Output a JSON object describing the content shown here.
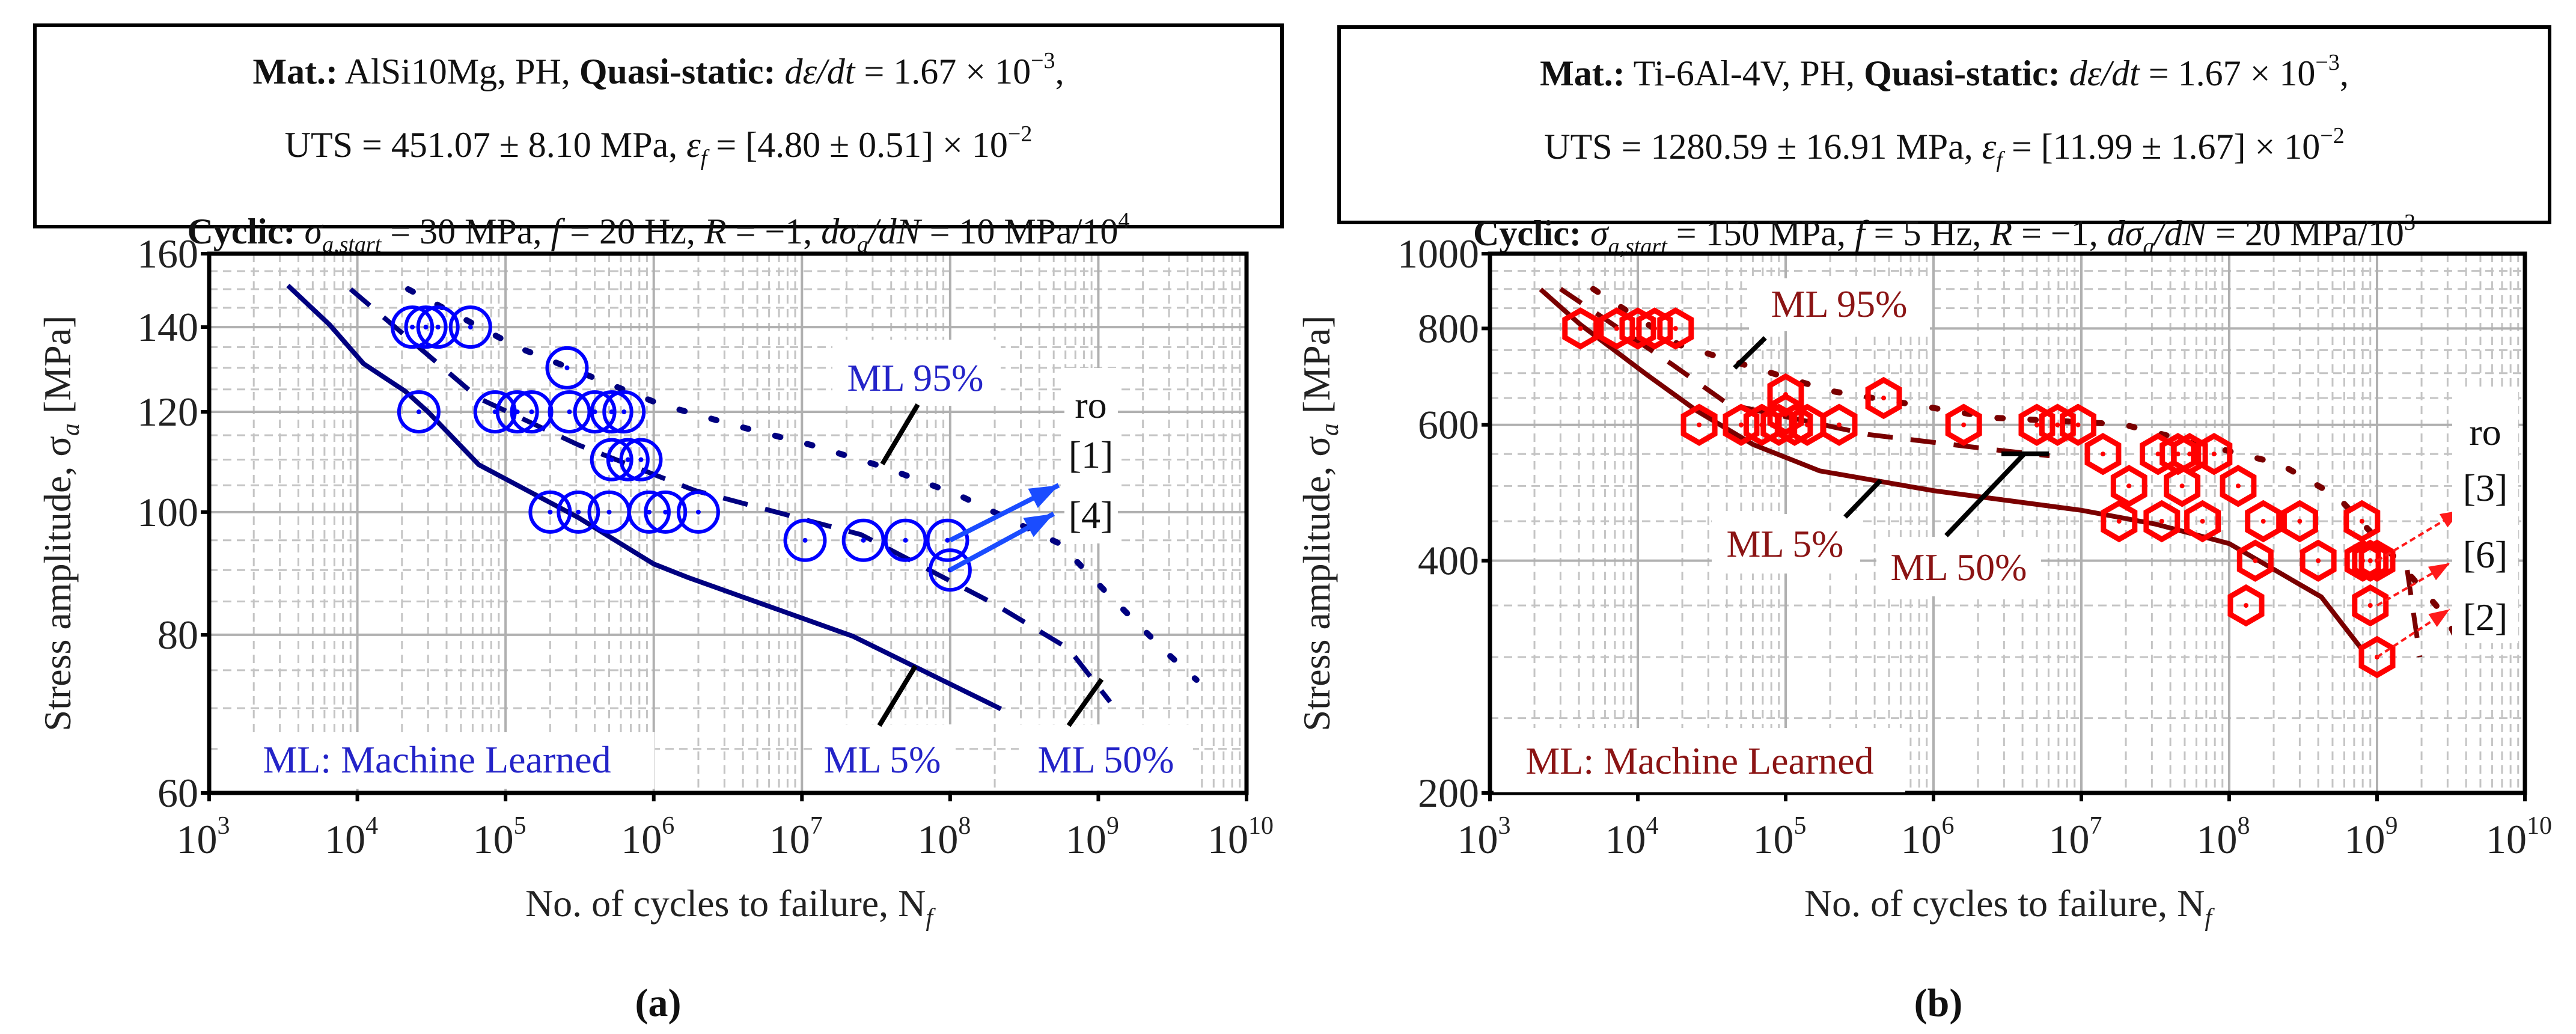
{
  "panels": [
    {
      "label": "(a)",
      "header": [
        [
          {
            "t": "Mat.:",
            "s": "b"
          },
          {
            "t": " AlSi10Mg, PH, ",
            "s": "n"
          },
          {
            "t": "Quasi-static:",
            "s": "b"
          },
          {
            "t": " ",
            "s": "n"
          },
          {
            "t": "dε/dt",
            "s": "i"
          },
          {
            "t": " = 1.67 × 10",
            "s": "n"
          },
          {
            "t": "−3",
            "s": "sup"
          },
          {
            "t": ",",
            "s": "n"
          }
        ],
        [
          {
            "t": "UTS = 451.07 ± 8.10 MPa, ",
            "s": "n"
          },
          {
            "t": "ε",
            "s": "i"
          },
          {
            "t": "f",
            "s": "sub"
          },
          {
            "t": " = [4.80 ± 0.51] × 10",
            "s": "n"
          },
          {
            "t": "−2",
            "s": "sup"
          }
        ],
        [
          {
            "t": "Cyclic:",
            "s": "b"
          },
          {
            "t": " ",
            "s": "n"
          },
          {
            "t": "σ",
            "s": "i"
          },
          {
            "t": "a,start",
            "s": "sub"
          },
          {
            "t": " = 30 MPa, ",
            "s": "n"
          },
          {
            "t": "f",
            "s": "i"
          },
          {
            "t": " = 20 Hz, ",
            "s": "n"
          },
          {
            "t": "R",
            "s": "i"
          },
          {
            "t": " = −1, ",
            "s": "n"
          },
          {
            "t": "dσ",
            "s": "i"
          },
          {
            "t": "a",
            "s": "sub"
          },
          {
            "t": "/dN",
            "s": "i"
          },
          {
            "t": " = 10 MPa/10",
            "s": "n"
          },
          {
            "t": "4",
            "s": "sup"
          }
        ]
      ]
    },
    {
      "label": "(b)",
      "header": [
        [
          {
            "t": "Mat.:",
            "s": "b"
          },
          {
            "t": " Ti-6Al-4V, PH, ",
            "s": "n"
          },
          {
            "t": "Quasi-static:",
            "s": "b"
          },
          {
            "t": " ",
            "s": "n"
          },
          {
            "t": "dε/dt",
            "s": "i"
          },
          {
            "t": " = 1.67 × 10",
            "s": "n"
          },
          {
            "t": "−3",
            "s": "sup"
          },
          {
            "t": ",",
            "s": "n"
          }
        ],
        [
          {
            "t": "UTS = 1280.59 ± 16.91 MPa, ",
            "s": "n"
          },
          {
            "t": "ε",
            "s": "i"
          },
          {
            "t": "f",
            "s": "sub"
          },
          {
            "t": " = [11.99 ± 1.67] × 10",
            "s": "n"
          },
          {
            "t": "−2",
            "s": "sup"
          }
        ],
        [
          {
            "t": "Cyclic:",
            "s": "b"
          },
          {
            "t": " ",
            "s": "n"
          },
          {
            "t": "σ",
            "s": "i"
          },
          {
            "t": "a,start",
            "s": "sub"
          },
          {
            "t": " = 150 MPa, ",
            "s": "n"
          },
          {
            "t": "f",
            "s": "i"
          },
          {
            "t": " = 5 Hz, ",
            "s": "n"
          },
          {
            "t": "R",
            "s": "i"
          },
          {
            "t": " = −1, ",
            "s": "n"
          },
          {
            "t": "dσ",
            "s": "i"
          },
          {
            "t": "a",
            "s": "sub"
          },
          {
            "t": "/dN",
            "s": "i"
          },
          {
            "t": " = 20 MPa/10",
            "s": "n"
          },
          {
            "t": "3",
            "s": "sup"
          }
        ]
      ]
    }
  ],
  "chart_data": [
    {
      "type": "scatter",
      "title": "",
      "xlabel": "No. of cycles to failure, N",
      "xlabel_sub": "f",
      "ylabel": "Stress amplitude, σ",
      "ylabel_sub": "a",
      "ylabel_unit": " [MPa]",
      "xscale": "log",
      "yscale": "log",
      "xlim": [
        1000.0,
        10000000000.0
      ],
      "ylim": [
        60,
        160
      ],
      "xtick_base": "10",
      "xtick_exponents": [
        "3",
        "4",
        "5",
        "6",
        "7",
        "8",
        "9",
        "10"
      ],
      "yticks": [
        60,
        80,
        100,
        120,
        140,
        160
      ],
      "grid": true,
      "colors": {
        "marker": "#0000ff",
        "line": "#000080",
        "label": "#2424c8",
        "arrow": "#1a4cff"
      },
      "marker": "circle",
      "experiments": [
        [
          23500.0,
          140
        ],
        [
          29000.0,
          140
        ],
        [
          35000.0,
          140
        ],
        [
          58000.0,
          140
        ],
        [
          260000.0,
          130
        ],
        [
          26000.0,
          120
        ],
        [
          85000.0,
          120
        ],
        [
          120000.0,
          120
        ],
        [
          150000.0,
          120
        ],
        [
          270000.0,
          120
        ],
        [
          400000.0,
          120
        ],
        [
          520000.0,
          120
        ],
        [
          630000.0,
          120
        ],
        [
          520000.0,
          110
        ],
        [
          670000.0,
          110
        ],
        [
          820000.0,
          110
        ],
        [
          200000.0,
          100
        ],
        [
          310000.0,
          100
        ],
        [
          500000.0,
          100
        ],
        [
          930000.0,
          100
        ],
        [
          1200000.0,
          100
        ],
        [
          2000000.0,
          100
        ],
        [
          10500000.0,
          95
        ],
        [
          26000000.0,
          95
        ],
        [
          50000000.0,
          95
        ],
        [
          96000000.0,
          95
        ],
        [
          100000000.0,
          90
        ]
      ],
      "series": [
        {
          "name": "ML 5%",
          "style": "solid",
          "points": [
            [
              3400.0,
              151
            ],
            [
              6500.0,
              140.6
            ],
            [
              11000.0,
              131
            ],
            [
              21000.0,
              124.6
            ],
            [
              30000.0,
              120
            ],
            [
              66000.0,
              109
            ],
            [
              310000.0,
              99
            ],
            [
              1000000.0,
              91
            ],
            [
              1700000.0,
              88.8
            ],
            [
              22000000.0,
              79.8
            ],
            [
              220000000.0,
              69.9
            ]
          ]
        },
        {
          "name": "ML 50%",
          "style": "dashed",
          "points": [
            [
              9000.0,
              150
            ],
            [
              66000.0,
              123
            ],
            [
              310000.0,
              113
            ],
            [
              1900000.0,
              104
            ],
            [
              25000000.0,
              96
            ],
            [
              196000000.0,
              84.7
            ],
            [
              630000000.0,
              78
            ],
            [
              1200000000.0,
              70.8
            ]
          ]
        },
        {
          "name": "ML 95%",
          "style": "dotted",
          "points": [
            [
              22000.0,
              150
            ],
            [
              120000.0,
              135
            ],
            [
              1100000.0,
              121.7
            ],
            [
              3600000.0,
              117
            ],
            [
              11500000.0,
              113
            ],
            [
              36000000.0,
              108.5
            ],
            [
              117000000.0,
              103
            ],
            [
              550000000.0,
              94.4
            ],
            [
              1200000000.0,
              85.8
            ],
            [
              2900000000.0,
              77.4
            ],
            [
              4600000000.0,
              73.7
            ]
          ]
        }
      ],
      "runout_label": "ro",
      "runouts": [
        {
          "label": "[1]",
          "from": [
            100000000.0,
            95
          ],
          "to": [
            540000000.0,
            105
          ]
        },
        {
          "label": "[4]",
          "from": [
            100000000.0,
            90
          ],
          "to": [
            500000000.0,
            99.7
          ]
        }
      ],
      "note": "ML: Machine Learned"
    },
    {
      "type": "scatter",
      "title": "",
      "xlabel": "No. of cycles to failure, N",
      "xlabel_sub": "f",
      "ylabel": "Stress amplitude, σ",
      "ylabel_sub": "a",
      "ylabel_unit": " [MPa]",
      "xscale": "log",
      "yscale": "log",
      "xlim": [
        1000.0,
        10000000000.0
      ],
      "ylim": [
        200,
        1000
      ],
      "xtick_base": "10",
      "xtick_exponents": [
        "3",
        "4",
        "5",
        "6",
        "7",
        "8",
        "9",
        "10"
      ],
      "yticks": [
        200,
        400,
        600,
        800,
        1000
      ],
      "grid": true,
      "colors": {
        "marker": "#ff0000",
        "line": "#7a0000",
        "label": "#8b1414",
        "arrow": "#ff1a1a"
      },
      "marker": "hexagon",
      "experiments": [
        [
          4100.0,
          800
        ],
        [
          7200.0,
          800
        ],
        [
          10000.0,
          800
        ],
        [
          13000.0,
          800
        ],
        [
          18000.0,
          800
        ],
        [
          100000.0,
          657
        ],
        [
          100000.0,
          619
        ],
        [
          460000.0,
          650
        ],
        [
          26000.0,
          600
        ],
        [
          50000.0,
          600
        ],
        [
          69000.0,
          600
        ],
        [
          90000.0,
          600
        ],
        [
          115000.0,
          600
        ],
        [
          140000.0,
          600
        ],
        [
          230000.0,
          600
        ],
        [
          1600000.0,
          600
        ],
        [
          5000000.0,
          600
        ],
        [
          6900000.0,
          600
        ],
        [
          9500000.0,
          600
        ],
        [
          14000000.0,
          550
        ],
        [
          33000000.0,
          550
        ],
        [
          45000000.0,
          550
        ],
        [
          54000000.0,
          550
        ],
        [
          79000000.0,
          550
        ],
        [
          21000000.0,
          500
        ],
        [
          48000000.0,
          500
        ],
        [
          115000000.0,
          500
        ],
        [
          18000000.0,
          450
        ],
        [
          35000000.0,
          450
        ],
        [
          66000000.0,
          450
        ],
        [
          170000000.0,
          450
        ],
        [
          300000000.0,
          450
        ],
        [
          790000000.0,
          450
        ],
        [
          150000000.0,
          400
        ],
        [
          400000000.0,
          400
        ],
        [
          800000000.0,
          400
        ],
        [
          900000000.0,
          400
        ],
        [
          1000000000.0,
          400
        ],
        [
          130000000.0,
          350
        ],
        [
          900000000.0,
          350
        ],
        [
          1000000000.0,
          300
        ]
      ],
      "series": [
        {
          "name": "ML 5%",
          "style": "solid",
          "points": [
            [
              2200.0,
              899
            ],
            [
              4100.0,
              809
            ],
            [
              11500.0,
              697
            ],
            [
              25000.0,
              626
            ],
            [
              60000.0,
              566
            ],
            [
              170000.0,
              523
            ],
            [
              1000000.0,
              493
            ],
            [
              10000000.0,
              465
            ],
            [
              32000000.0,
              446
            ],
            [
              100000000.0,
              421
            ],
            [
              420000000.0,
              359
            ],
            [
              790000000.0,
              307
            ]
          ]
        },
        {
          "name": "ML 50%",
          "style": "dashed",
          "points": [
            [
              3000.0,
              900
            ],
            [
              17000.0,
              719
            ],
            [
              41000.0,
              638
            ],
            [
              360000.0,
              583
            ],
            [
              2800000.0,
              556
            ],
            [
              6100000.0,
              547
            ]
          ],
          "tail": [
            [
              1600000000.0,
              389
            ],
            [
              1950000000.0,
              300
            ]
          ]
        },
        {
          "name": "ML 95%",
          "style": "dotted",
          "points": [
            [
              5000.0,
              900
            ],
            [
              19000.0,
              762
            ],
            [
              200000.0,
              664
            ],
            [
              2500000.0,
              613
            ],
            [
              19000000.0,
              601
            ],
            [
              220000000.0,
              534
            ],
            [
              540000000.0,
              484
            ],
            [
              1300000000.0,
              405
            ],
            [
              2900000000.0,
              339
            ],
            [
              4000000000.0,
              300
            ]
          ]
        }
      ],
      "runout_label": "ro",
      "runouts": [
        {
          "label": "[3]",
          "from": [
            1000000000.0,
            400
          ],
          "to": [
            3700000000.0,
            465
          ]
        },
        {
          "label": "[6]",
          "from": [
            1000000000.0,
            350
          ],
          "to": [
            3100000000.0,
            397
          ]
        },
        {
          "label": "[2]",
          "from": [
            1000000000.0,
            300
          ],
          "to": [
            3100000000.0,
            346
          ]
        }
      ],
      "note": "ML: Machine Learned"
    }
  ]
}
